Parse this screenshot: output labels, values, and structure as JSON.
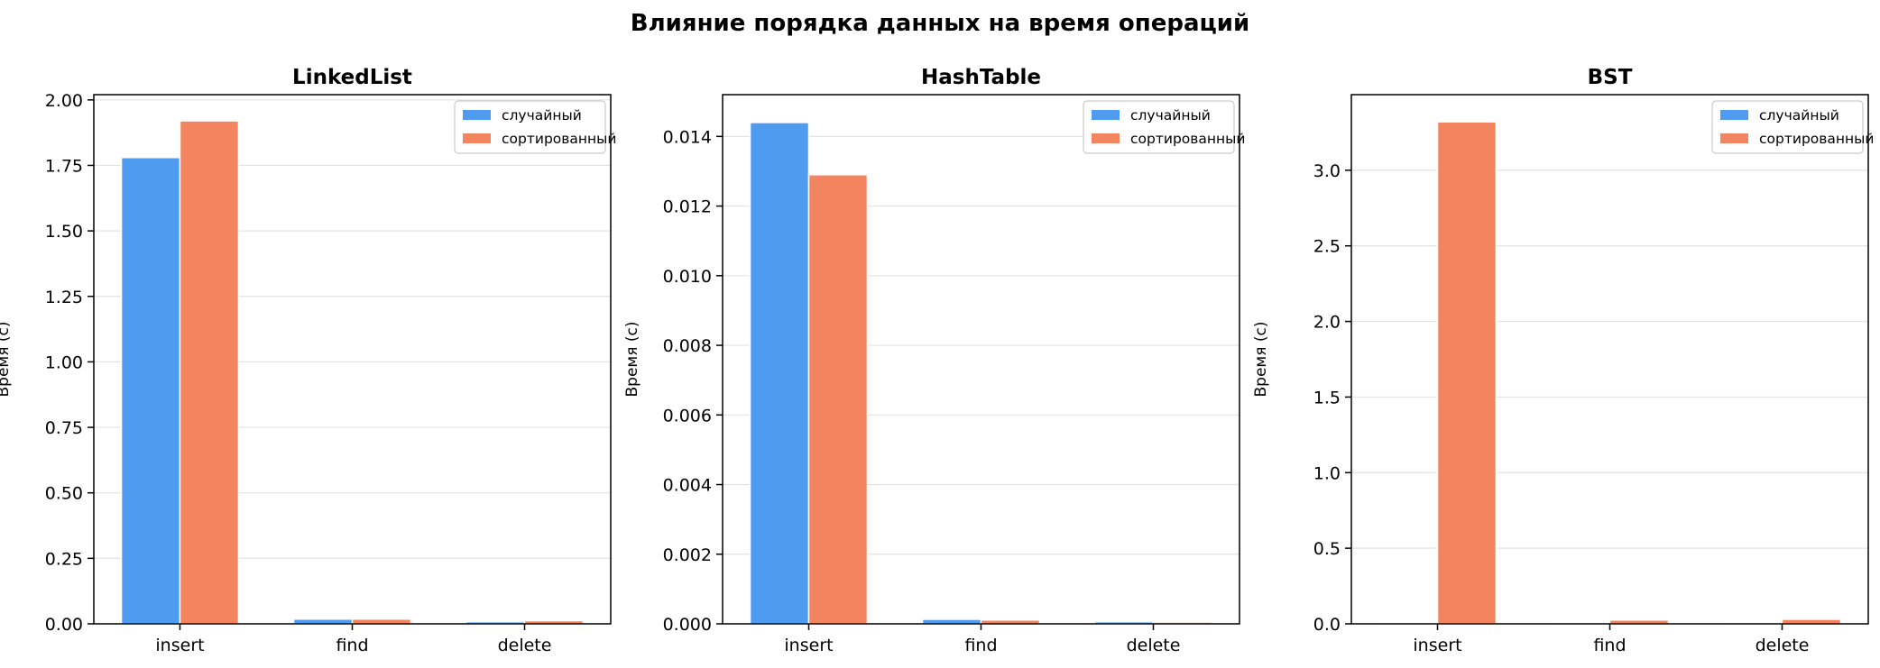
{
  "suptitle": "Влияние порядка данных на время операций",
  "colors": {
    "random": "#4e9bf0",
    "sorted": "#f28560",
    "grid": "#e3e3e3",
    "axis": "#000000"
  },
  "chart_data": [
    {
      "type": "bar",
      "title": "LinkedList",
      "xlabel": "",
      "ylabel": "Время (с)",
      "categories": [
        "insert",
        "find",
        "delete"
      ],
      "ylim": [
        0,
        2.02
      ],
      "yticks": [
        0.0,
        0.25,
        0.5,
        0.75,
        1.0,
        1.25,
        1.5,
        1.75,
        2.0
      ],
      "yticklabels": [
        "0.00",
        "0.25",
        "0.50",
        "0.75",
        "1.00",
        "1.25",
        "1.50",
        "1.75",
        "2.00"
      ],
      "grid": "horizontal",
      "legend_position": "top-right",
      "series": [
        {
          "name": "случайный",
          "values": [
            1.78,
            0.018,
            0.008
          ]
        },
        {
          "name": "сортированный",
          "values": [
            1.92,
            0.018,
            0.012
          ]
        }
      ]
    },
    {
      "type": "bar",
      "title": "HashTable",
      "xlabel": "",
      "ylabel": "Время (с)",
      "categories": [
        "insert",
        "find",
        "delete"
      ],
      "ylim": [
        0,
        0.0152
      ],
      "yticks": [
        0.0,
        0.002,
        0.004,
        0.006,
        0.008,
        0.01,
        0.012,
        0.014
      ],
      "yticklabels": [
        "0.000",
        "0.002",
        "0.004",
        "0.006",
        "0.008",
        "0.010",
        "0.012",
        "0.014"
      ],
      "grid": "horizontal",
      "legend_position": "top-right",
      "series": [
        {
          "name": "случайный",
          "values": [
            0.0144,
            0.00013,
            6e-05
          ]
        },
        {
          "name": "сортированный",
          "values": [
            0.0129,
            0.00011,
            5e-05
          ]
        }
      ]
    },
    {
      "type": "bar",
      "title": "BST",
      "xlabel": "",
      "ylabel": "Время (с)",
      "categories": [
        "insert",
        "find",
        "delete"
      ],
      "ylim": [
        0,
        3.5
      ],
      "yticks": [
        0.0,
        0.5,
        1.0,
        1.5,
        2.0,
        2.5,
        3.0
      ],
      "yticklabels": [
        "0.0",
        "0.5",
        "1.0",
        "1.5",
        "2.0",
        "2.5",
        "3.0"
      ],
      "grid": "horizontal",
      "legend_position": "top-right",
      "series": [
        {
          "name": "случайный",
          "values": [
            0.004,
            0.001,
            0.001
          ]
        },
        {
          "name": "сортированный",
          "values": [
            3.32,
            0.025,
            0.03
          ]
        }
      ]
    }
  ]
}
